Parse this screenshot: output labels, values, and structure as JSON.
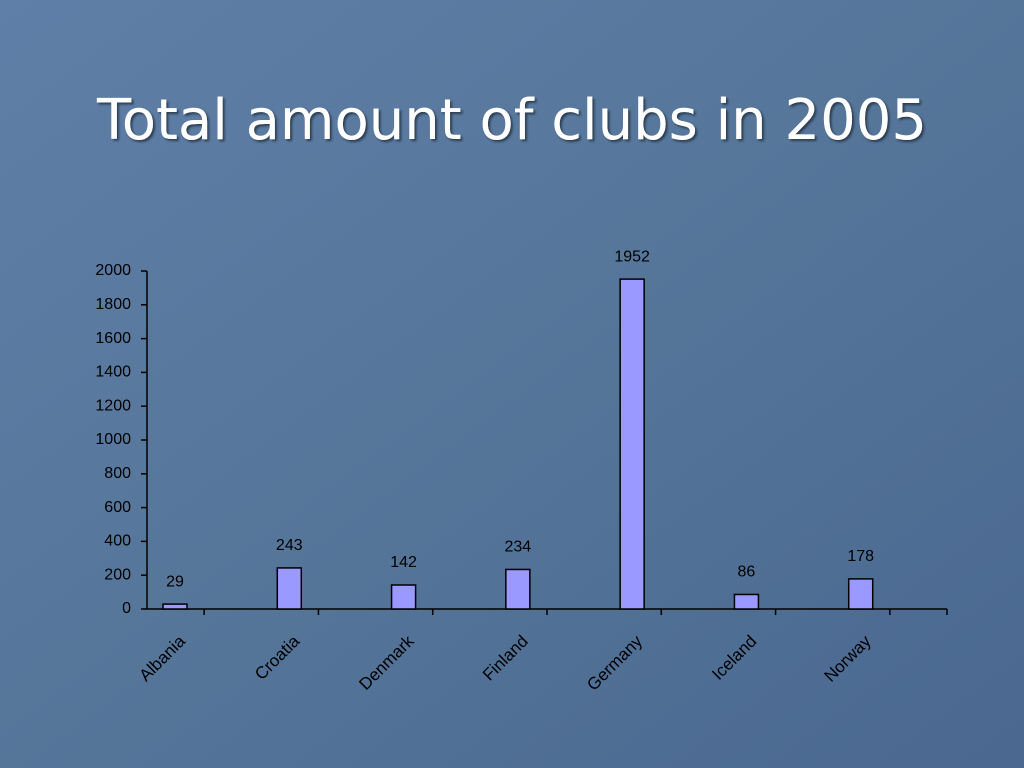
{
  "chart_data": {
    "type": "bar",
    "title": "Total amount of clubs in 2005",
    "categories": [
      "Albania",
      "Croatia",
      "Denmark",
      "Finland",
      "Germany",
      "Iceland",
      "Norway"
    ],
    "values": [
      29,
      243,
      142,
      234,
      1952,
      86,
      178
    ],
    "color": "#9999ff",
    "ylim": [
      0,
      2000
    ],
    "yticks": [
      0,
      200,
      400,
      600,
      800,
      1000,
      1200,
      1400,
      1600,
      1800,
      2000
    ],
    "grid": false
  }
}
